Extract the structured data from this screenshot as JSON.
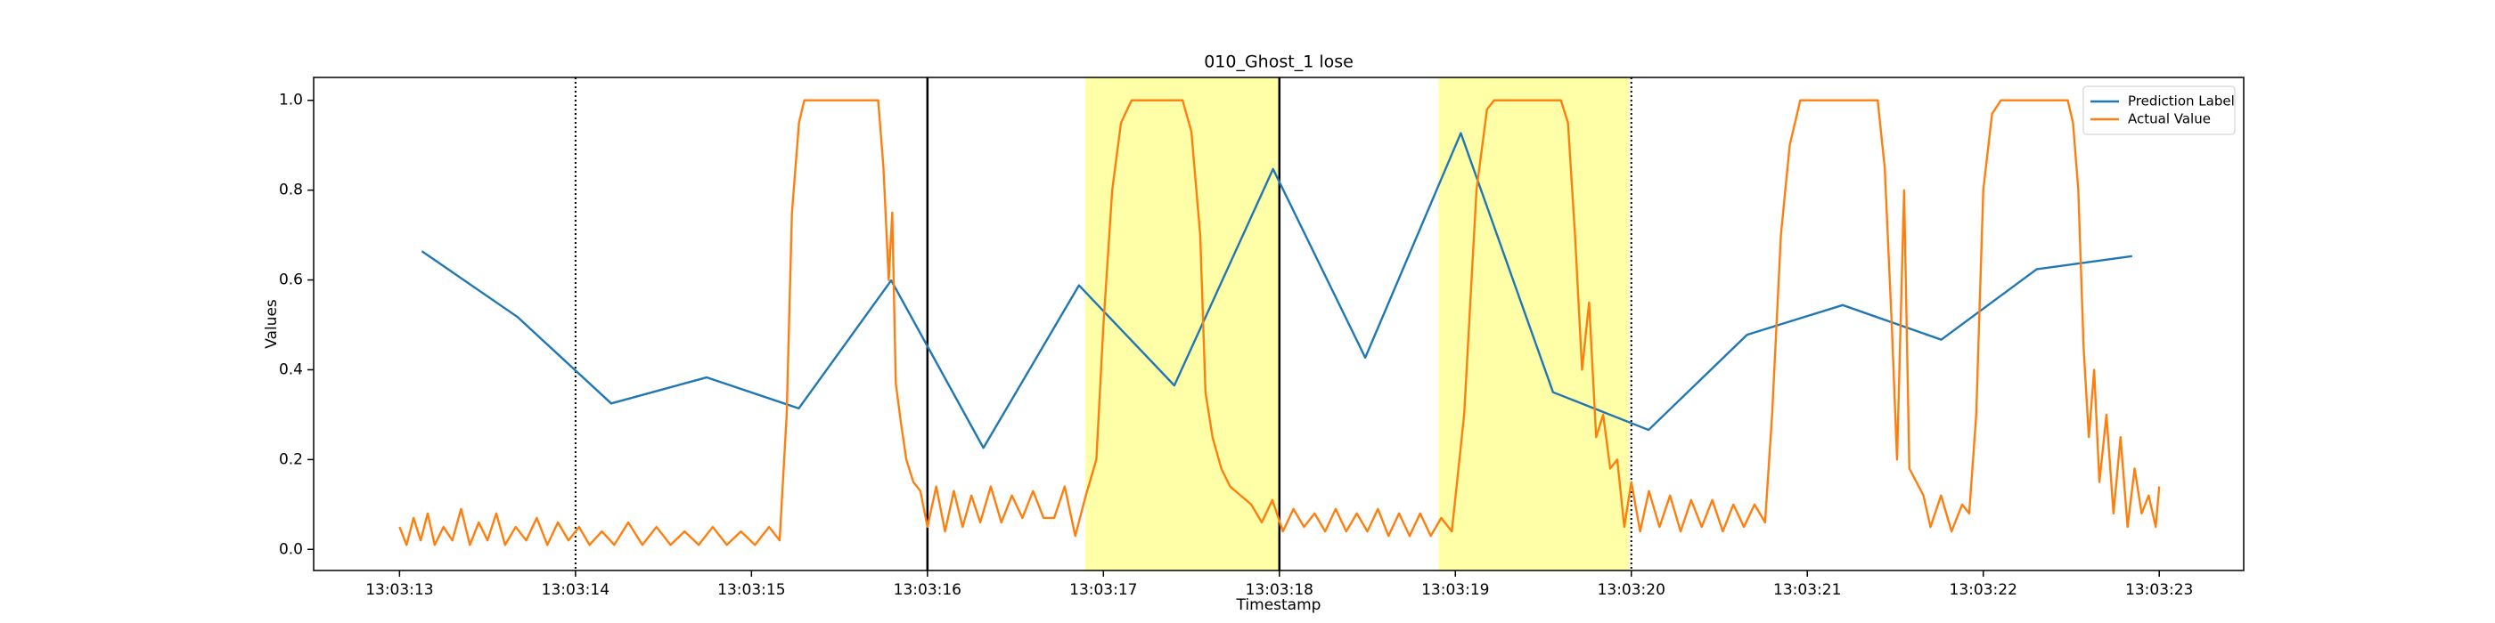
{
  "chart_data": {
    "type": "line",
    "title": "010_Ghost_1 lose",
    "xlabel": "Timestamp",
    "ylabel": "Values",
    "xlim": [
      12.512,
      23.48
    ],
    "ylim": [
      -0.047,
      1.051
    ],
    "xticks": [
      {
        "value": 13,
        "label": "13:03:13"
      },
      {
        "value": 14,
        "label": "13:03:14"
      },
      {
        "value": 15,
        "label": "13:03:15"
      },
      {
        "value": 16,
        "label": "13:03:16"
      },
      {
        "value": 17,
        "label": "13:03:17"
      },
      {
        "value": 18,
        "label": "13:03:18"
      },
      {
        "value": 19,
        "label": "13:03:19"
      },
      {
        "value": 20,
        "label": "13:03:20"
      },
      {
        "value": 21,
        "label": "13:03:21"
      },
      {
        "value": 22,
        "label": "13:03:22"
      },
      {
        "value": 23,
        "label": "13:03:23"
      }
    ],
    "yticks": [
      {
        "value": 0,
        "label": "0.0"
      },
      0.2,
      0.4,
      0.6,
      0.8,
      {
        "value": 1,
        "label": "1.0"
      }
    ],
    "legend": "upper right",
    "spans": [
      [
        16.897,
        18.0
      ],
      [
        18.904,
        19.989
      ]
    ],
    "span_color": "#ffffa8",
    "vlines": [
      {
        "x": 14,
        "style": "dotted"
      },
      {
        "x": 16,
        "style": "solid"
      },
      {
        "x": 18,
        "style": "solid"
      },
      {
        "x": 20,
        "style": "dotted"
      }
    ],
    "series": [
      {
        "name": "Prediction Label",
        "color": "#1f77b4",
        "x": [
          13.127,
          13.669,
          14.203,
          14.745,
          15.269,
          15.794,
          16.318,
          16.861,
          17.403,
          17.964,
          18.488,
          19.031,
          19.555,
          20.098,
          20.658,
          21.201,
          21.761,
          22.304,
          22.846
        ],
        "values": [
          0.664,
          0.518,
          0.325,
          0.383,
          0.314,
          0.599,
          0.226,
          0.588,
          0.365,
          0.847,
          0.427,
          0.927,
          0.35,
          0.266,
          0.478,
          0.544,
          0.467,
          0.624,
          0.653
        ]
      },
      {
        "name": "Actual Value",
        "color": "#ff7f0e",
        "x": [
          13.0,
          13.04,
          13.08,
          13.12,
          13.16,
          13.2,
          13.25,
          13.3,
          13.35,
          13.4,
          13.45,
          13.5,
          13.55,
          13.6,
          13.66,
          13.72,
          13.78,
          13.84,
          13.9,
          13.96,
          14.02,
          14.08,
          14.15,
          14.22,
          14.3,
          14.38,
          14.46,
          14.54,
          14.62,
          14.7,
          14.78,
          14.86,
          14.94,
          15.02,
          15.1,
          15.16,
          15.2,
          15.23,
          15.27,
          15.3,
          15.72,
          15.75,
          15.78,
          15.8,
          15.82,
          15.85,
          15.88,
          15.92,
          15.96,
          16.0,
          16.05,
          16.1,
          16.15,
          16.2,
          16.25,
          16.3,
          16.36,
          16.42,
          16.48,
          16.54,
          16.6,
          16.66,
          16.72,
          16.78,
          16.84,
          16.9,
          16.96,
          17.0,
          17.05,
          17.1,
          17.16,
          17.45,
          17.5,
          17.55,
          17.58,
          17.62,
          17.67,
          17.72,
          17.78,
          17.84,
          17.9,
          17.96,
          18.02,
          18.08,
          18.14,
          18.2,
          18.26,
          18.32,
          18.38,
          18.44,
          18.5,
          18.56,
          18.62,
          18.68,
          18.74,
          18.8,
          18.86,
          18.92,
          18.98,
          19.05,
          19.12,
          19.18,
          19.22,
          19.6,
          19.64,
          19.68,
          19.72,
          19.76,
          19.8,
          19.84,
          19.88,
          19.92,
          19.96,
          20.0,
          20.05,
          20.1,
          20.16,
          20.22,
          20.28,
          20.34,
          20.4,
          20.46,
          20.52,
          20.58,
          20.64,
          20.7,
          20.76,
          20.8,
          20.85,
          20.9,
          20.96,
          21.4,
          21.44,
          21.48,
          21.51,
          21.55,
          21.58,
          21.62,
          21.66,
          21.7,
          21.76,
          21.82,
          21.88,
          21.92,
          21.96,
          22.0,
          22.05,
          22.1,
          22.48,
          22.51,
          22.54,
          22.57,
          22.6,
          22.63,
          22.66,
          22.7,
          22.74,
          22.78,
          22.82,
          22.86,
          22.9,
          22.94,
          22.98,
          23.0
        ],
        "values": [
          0.05,
          0.01,
          0.07,
          0.02,
          0.08,
          0.01,
          0.05,
          0.02,
          0.09,
          0.01,
          0.06,
          0.02,
          0.08,
          0.01,
          0.05,
          0.02,
          0.07,
          0.01,
          0.06,
          0.02,
          0.05,
          0.01,
          0.04,
          0.01,
          0.06,
          0.01,
          0.05,
          0.01,
          0.04,
          0.01,
          0.05,
          0.01,
          0.04,
          0.01,
          0.05,
          0.02,
          0.3,
          0.75,
          0.95,
          1.0,
          1.0,
          0.85,
          0.6,
          0.75,
          0.37,
          0.28,
          0.2,
          0.15,
          0.13,
          0.05,
          0.14,
          0.04,
          0.13,
          0.05,
          0.12,
          0.06,
          0.14,
          0.06,
          0.12,
          0.07,
          0.13,
          0.07,
          0.07,
          0.14,
          0.03,
          0.12,
          0.2,
          0.5,
          0.8,
          0.95,
          1.0,
          1.0,
          0.93,
          0.7,
          0.35,
          0.25,
          0.18,
          0.14,
          0.12,
          0.1,
          0.06,
          0.11,
          0.04,
          0.09,
          0.05,
          0.08,
          0.04,
          0.09,
          0.04,
          0.08,
          0.04,
          0.09,
          0.03,
          0.08,
          0.03,
          0.08,
          0.03,
          0.07,
          0.04,
          0.3,
          0.8,
          0.98,
          1.0,
          1.0,
          0.95,
          0.7,
          0.4,
          0.55,
          0.25,
          0.3,
          0.18,
          0.2,
          0.05,
          0.15,
          0.04,
          0.13,
          0.05,
          0.12,
          0.04,
          0.11,
          0.05,
          0.11,
          0.04,
          0.1,
          0.05,
          0.1,
          0.06,
          0.3,
          0.7,
          0.9,
          1.0,
          1.0,
          0.85,
          0.5,
          0.2,
          0.8,
          0.18,
          0.15,
          0.12,
          0.05,
          0.12,
          0.04,
          0.1,
          0.08,
          0.3,
          0.8,
          0.97,
          1.0,
          1.0,
          0.95,
          0.8,
          0.45,
          0.25,
          0.4,
          0.15,
          0.3,
          0.08,
          0.25,
          0.05,
          0.18,
          0.08,
          0.12,
          0.05,
          0.14
        ]
      }
    ]
  }
}
